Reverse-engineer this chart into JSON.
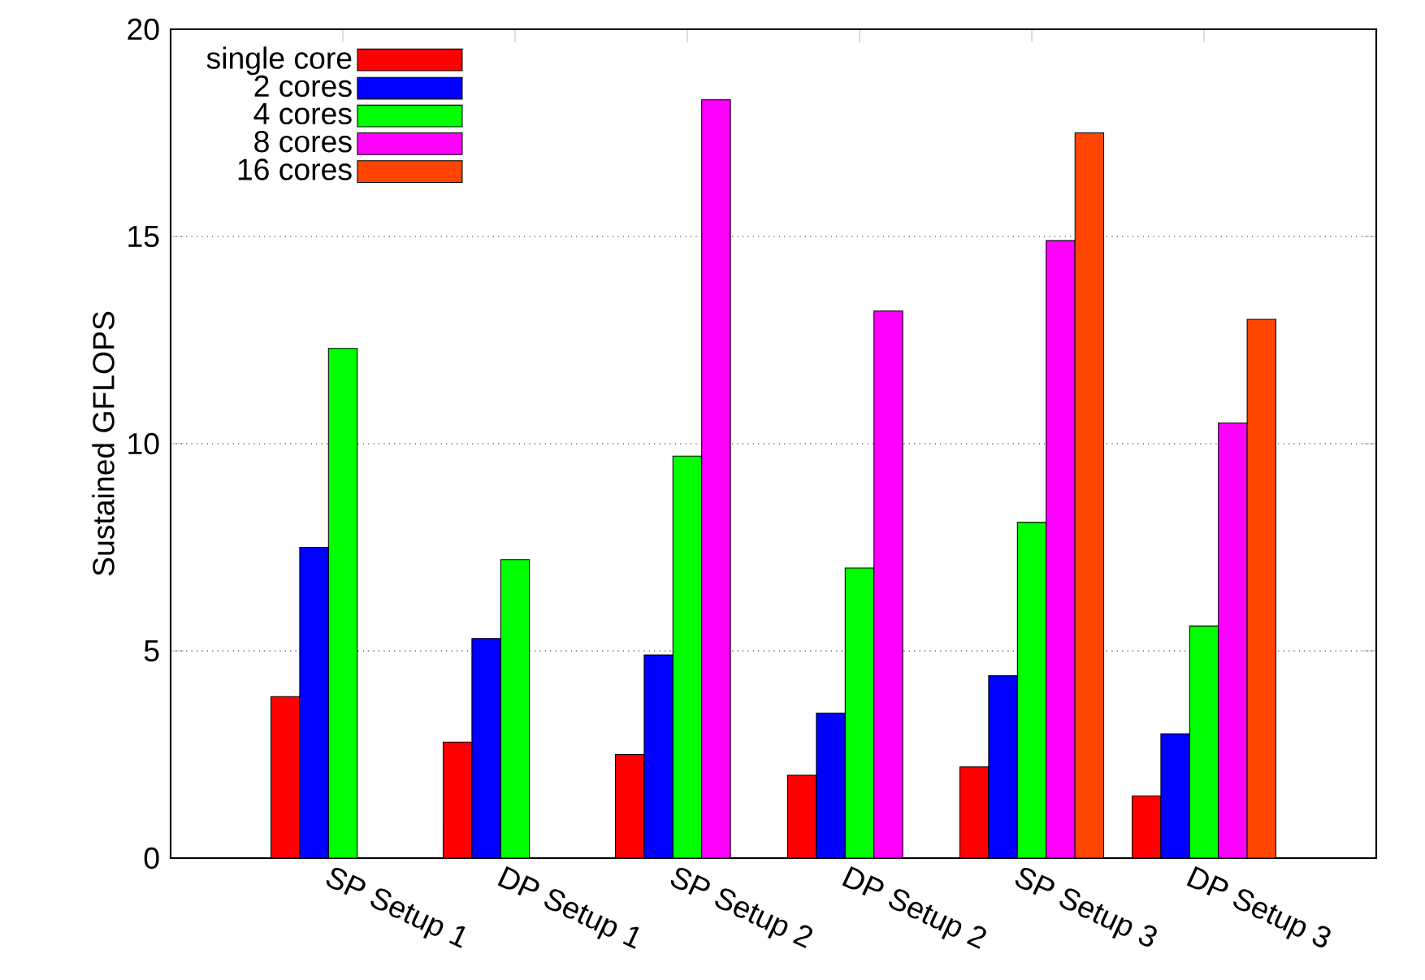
{
  "chart_data": {
    "type": "bar",
    "ylabel": "Sustained GFLOPS",
    "categories": [
      "SP Setup 1",
      "DP Setup 1",
      "SP Setup 2",
      "DP Setup 2",
      "SP Setup 3",
      "DP Setup 3"
    ],
    "series": [
      {
        "name": "single core",
        "color": "#ff0000",
        "values": [
          3.9,
          2.8,
          2.5,
          2.0,
          2.2,
          1.5
        ]
      },
      {
        "name": "2 cores",
        "color": "#0000ff",
        "values": [
          7.5,
          5.3,
          4.9,
          3.5,
          4.4,
          3.0
        ]
      },
      {
        "name": "4 cores",
        "color": "#00ff00",
        "values": [
          12.3,
          7.2,
          9.7,
          7.0,
          8.1,
          5.6
        ]
      },
      {
        "name": "8 cores",
        "color": "#ff00ff",
        "values": [
          null,
          null,
          18.3,
          13.2,
          14.9,
          10.5
        ]
      },
      {
        "name": "16 cores",
        "color": "#ff4500",
        "values": [
          null,
          null,
          null,
          null,
          17.5,
          13.0
        ]
      }
    ],
    "ylim": [
      0,
      20
    ],
    "yticks": [
      0,
      5,
      10,
      15,
      20
    ],
    "grid": "y",
    "legend": "top left"
  }
}
